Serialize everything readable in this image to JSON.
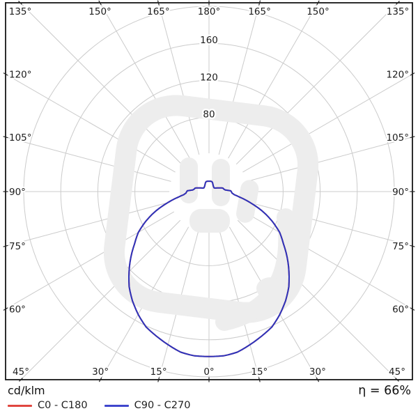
{
  "chart_data": {
    "type": "polar-photometric",
    "unit_label": "cd/klm",
    "efficiency_label": "η = 66%",
    "angle_unit": "°",
    "angle_step_deg": 15,
    "angle_labels_deg": [
      0,
      15,
      30,
      45,
      60,
      75,
      90,
      105,
      120,
      135,
      150,
      165,
      180
    ],
    "radial_rings": [
      40,
      80,
      120,
      160,
      200
    ],
    "radial_ring_labels": [
      "80",
      "120",
      "160"
    ],
    "rlim": [
      0,
      200
    ],
    "legend_position": "bottom-left",
    "legend": [
      {
        "label": "C0 - C180",
        "color": "#e0463f"
      },
      {
        "label": "C90 - C270",
        "color": "#3f46cd"
      }
    ],
    "series": [
      {
        "name": "C0 - C180",
        "color": "#e0463f",
        "symmetric": true,
        "hidden_under_c90": true,
        "points": [
          [
            0,
            178
          ],
          [
            5,
            178
          ],
          [
            10,
            176
          ],
          [
            15,
            171
          ],
          [
            20,
            166
          ],
          [
            25,
            161
          ],
          [
            30,
            153
          ],
          [
            35,
            144
          ],
          [
            40,
            134
          ],
          [
            45,
            122
          ],
          [
            50,
            110
          ],
          [
            55,
            98
          ],
          [
            60,
            88
          ],
          [
            65,
            75
          ],
          [
            70,
            61
          ],
          [
            75,
            46
          ],
          [
            80,
            33
          ],
          [
            83,
            27.5
          ],
          [
            86,
            25
          ],
          [
            90,
            24
          ],
          [
            92,
            23.5
          ],
          [
            94,
            20
          ],
          [
            96,
            17.5
          ],
          [
            100,
            16
          ],
          [
            104,
            15.5
          ],
          [
            108,
            13
          ],
          [
            112,
            10.5
          ],
          [
            116,
            8.8
          ],
          [
            120,
            7.5
          ],
          [
            126,
            6.8
          ],
          [
            134,
            7.0
          ],
          [
            142,
            7.6
          ],
          [
            150,
            8.6
          ],
          [
            158,
            10.2
          ],
          [
            164,
            11.2
          ],
          [
            172,
            11.3
          ],
          [
            180,
            11.2
          ]
        ]
      },
      {
        "name": "C90 - C270",
        "color": "#2c33bb",
        "symmetric": true,
        "points": [
          [
            0,
            178
          ],
          [
            5,
            178
          ],
          [
            10,
            176
          ],
          [
            15,
            171
          ],
          [
            20,
            166
          ],
          [
            25,
            161
          ],
          [
            30,
            153
          ],
          [
            35,
            144
          ],
          [
            40,
            134
          ],
          [
            45,
            122
          ],
          [
            50,
            110
          ],
          [
            55,
            98
          ],
          [
            60,
            88
          ],
          [
            65,
            75
          ],
          [
            70,
            61
          ],
          [
            75,
            46
          ],
          [
            80,
            33
          ],
          [
            83,
            27.5
          ],
          [
            86,
            25
          ],
          [
            90,
            24
          ],
          [
            92,
            23.5
          ],
          [
            94,
            20
          ],
          [
            96,
            17.5
          ],
          [
            100,
            16
          ],
          [
            104,
            15.5
          ],
          [
            108,
            13
          ],
          [
            112,
            10.5
          ],
          [
            116,
            8.8
          ],
          [
            120,
            7.5
          ],
          [
            126,
            6.8
          ],
          [
            134,
            7.0
          ],
          [
            142,
            7.6
          ],
          [
            150,
            8.6
          ],
          [
            158,
            10.2
          ],
          [
            164,
            11.2
          ],
          [
            172,
            11.3
          ],
          [
            180,
            11.2
          ]
        ]
      }
    ]
  },
  "colors": {
    "grid": "#cbcbcb",
    "border": "#161616",
    "tick": "#222222",
    "label_text": "#1c1c1c",
    "watermark": "#ededed",
    "background": "#ffffff"
  }
}
